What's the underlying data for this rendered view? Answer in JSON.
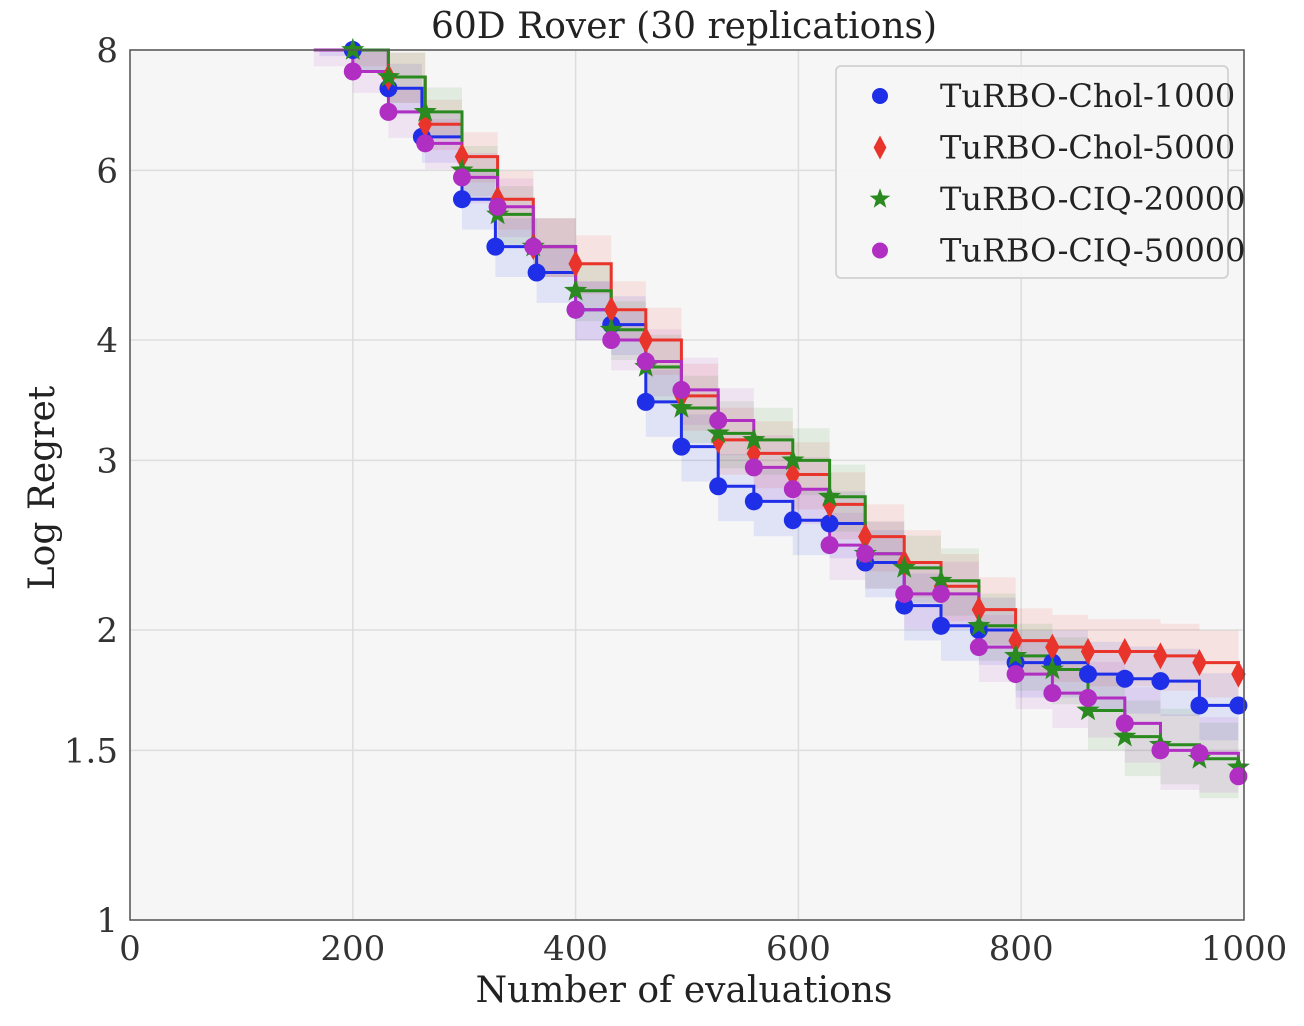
{
  "chart_data": {
    "type": "line",
    "title": "60D Rover (30 replications)",
    "xlabel": "Number of evaluations",
    "ylabel": "Log Regret",
    "xlim": [
      0,
      1000
    ],
    "ylim": [
      1,
      8
    ],
    "y_scale": "log",
    "grid": true,
    "legend_position": "top-right",
    "x_ticks": [
      0,
      200,
      400,
      600,
      800,
      1000
    ],
    "x_tick_labels": [
      "0",
      "200",
      "400",
      "600",
      "800",
      "1000"
    ],
    "y_ticks": [
      1,
      1.5,
      2,
      3,
      4,
      6,
      8
    ],
    "y_tick_labels": [
      "1",
      "1.5",
      "2",
      "3",
      "4",
      "6",
      "8"
    ],
    "series": [
      {
        "name": "TuRBO-Chol-1000",
        "color": "#1f2fe8",
        "marker": "circle",
        "x": [
          170,
          200,
          232,
          262,
          298,
          328,
          365,
          400,
          432,
          463,
          495,
          528,
          560,
          595,
          628,
          660,
          695,
          728,
          762,
          795,
          828,
          860,
          893,
          925,
          960,
          995
        ],
        "y": [
          8.3,
          8.0,
          7.3,
          6.5,
          5.6,
          5.0,
          4.7,
          4.3,
          4.15,
          3.45,
          3.1,
          2.82,
          2.72,
          2.6,
          2.58,
          2.35,
          2.12,
          2.02,
          2.0,
          1.85,
          1.85,
          1.8,
          1.78,
          1.77,
          1.67,
          1.67
        ],
        "band": [
          0.05,
          0.05,
          0.06,
          0.06,
          0.07,
          0.07,
          0.07,
          0.07,
          0.07,
          0.08,
          0.08,
          0.08,
          0.08,
          0.08,
          0.08,
          0.08,
          0.08,
          0.08,
          0.08,
          0.08,
          0.08,
          0.08,
          0.08,
          0.08,
          0.08,
          0.08
        ]
      },
      {
        "name": "TuRBO-Chol-5000",
        "color": "#e8342a",
        "marker": "diamond",
        "x": [
          170,
          200,
          232,
          265,
          298,
          330,
          362,
          400,
          432,
          463,
          495,
          528,
          560,
          595,
          628,
          660,
          695,
          728,
          762,
          795,
          828,
          860,
          893,
          925,
          960,
          995
        ],
        "y": [
          8.4,
          8.1,
          7.5,
          6.7,
          6.2,
          5.6,
          5.0,
          4.8,
          4.3,
          4.0,
          3.5,
          3.15,
          3.05,
          2.9,
          2.7,
          2.5,
          2.35,
          2.22,
          2.1,
          1.95,
          1.92,
          1.9,
          1.9,
          1.88,
          1.85,
          1.8
        ],
        "band": [
          0.05,
          0.05,
          0.06,
          0.06,
          0.06,
          0.07,
          0.07,
          0.07,
          0.07,
          0.08,
          0.08,
          0.08,
          0.08,
          0.08,
          0.08,
          0.08,
          0.08,
          0.08,
          0.08,
          0.08,
          0.08,
          0.08,
          0.08,
          0.08,
          0.08,
          0.08
        ]
      },
      {
        "name": "TuRBO-CIQ-20000",
        "color": "#2a8a1f",
        "marker": "star",
        "x": [
          170,
          200,
          232,
          265,
          298,
          330,
          362,
          400,
          432,
          463,
          495,
          528,
          560,
          595,
          628,
          660,
          695,
          728,
          762,
          795,
          828,
          860,
          893,
          925,
          960,
          995
        ],
        "y": [
          8.4,
          8.0,
          7.5,
          6.9,
          6.0,
          5.4,
          5.0,
          4.5,
          4.1,
          3.75,
          3.4,
          3.2,
          3.15,
          3.0,
          2.75,
          2.4,
          2.32,
          2.25,
          2.02,
          1.88,
          1.82,
          1.65,
          1.55,
          1.52,
          1.47,
          1.44
        ],
        "band": [
          0.05,
          0.05,
          0.06,
          0.06,
          0.06,
          0.07,
          0.07,
          0.07,
          0.07,
          0.08,
          0.08,
          0.08,
          0.08,
          0.08,
          0.08,
          0.08,
          0.08,
          0.08,
          0.08,
          0.08,
          0.08,
          0.09,
          0.09,
          0.09,
          0.09,
          0.09
        ]
      },
      {
        "name": "TuRBO-CIQ-50000",
        "color": "#b02ec2",
        "marker": "circle",
        "x": [
          165,
          200,
          232,
          265,
          298,
          330,
          362,
          400,
          432,
          463,
          495,
          528,
          560,
          595,
          628,
          660,
          695,
          728,
          762,
          795,
          828,
          860,
          893,
          925,
          960,
          995
        ],
        "y": [
          8.1,
          7.6,
          6.9,
          6.4,
          5.9,
          5.5,
          5.0,
          4.3,
          4.0,
          3.8,
          3.55,
          3.3,
          2.95,
          2.8,
          2.45,
          2.4,
          2.18,
          2.18,
          1.92,
          1.8,
          1.72,
          1.7,
          1.6,
          1.5,
          1.49,
          1.41
        ],
        "band": [
          0.05,
          0.05,
          0.06,
          0.06,
          0.06,
          0.07,
          0.07,
          0.07,
          0.07,
          0.08,
          0.08,
          0.08,
          0.08,
          0.08,
          0.08,
          0.08,
          0.08,
          0.08,
          0.08,
          0.08,
          0.08,
          0.09,
          0.09,
          0.09,
          0.09,
          0.1
        ]
      }
    ]
  }
}
